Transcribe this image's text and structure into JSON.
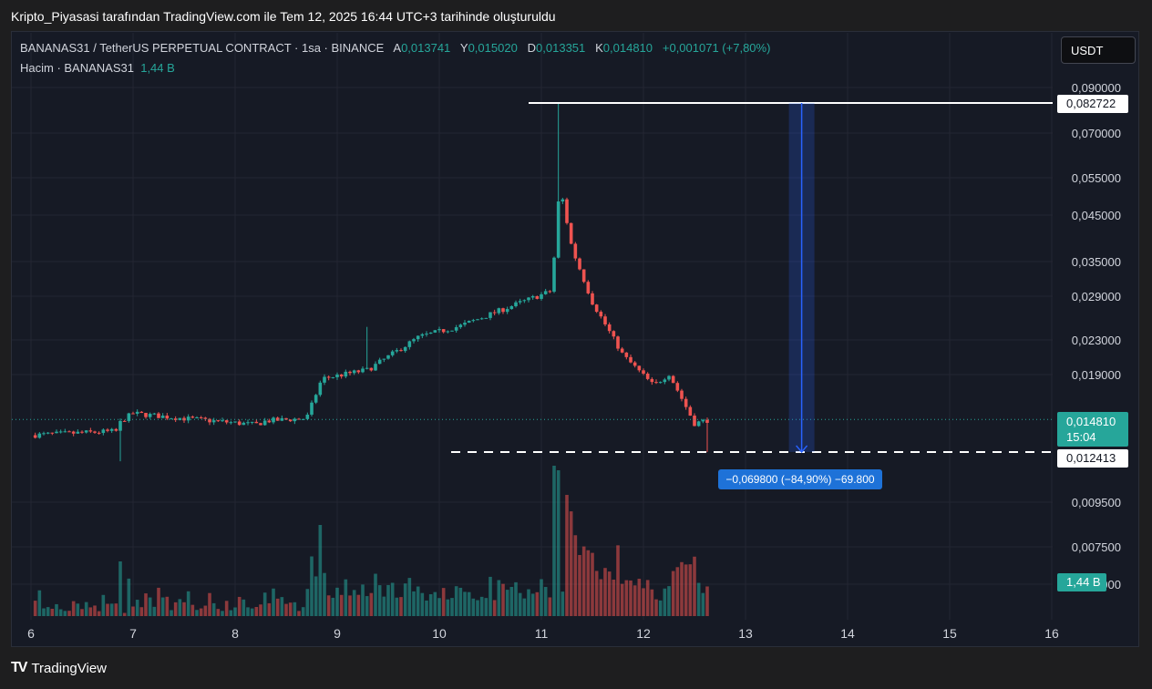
{
  "caption": "Kripto_Piyasasi tarafından TradingView.com ile Tem 12, 2025 16:44 UTC+3 tarihinde oluşturuldu",
  "legend": {
    "symbol": "BANANAS31 / TetherUS PERPETUAL CONTRACT · 1sa · BINANCE",
    "o_label": "A",
    "o_value": "0,013741",
    "h_label": "Y",
    "h_value": "0,015020",
    "l_label": "D",
    "l_value": "0,013351",
    "c_label": "K",
    "c_value": "0,014810",
    "change": "+0,001071 (+7,80%)",
    "volume_label": "Hacim · BANANAS31",
    "volume_value": "1,44 B"
  },
  "currency_button": "USDT",
  "price_tags": {
    "high": "0,082722",
    "current": "0,014810",
    "countdown": "15:04",
    "low": "0,012413",
    "volume": "1,44 B"
  },
  "measure_label": "−0,069800 (−84,90%) −69.800",
  "brand": "TradingView",
  "colors": {
    "up": "#26a69a",
    "down": "#ef5350",
    "measure": "#2962ff"
  },
  "chart_data": {
    "type": "candlestick",
    "interval": "1h",
    "y_scale": "log",
    "x_ticks": [
      "6",
      "7",
      "8",
      "9",
      "10",
      "11",
      "12",
      "13",
      "14",
      "15",
      "16"
    ],
    "y_ticks": [
      "0,090000",
      "0,070000",
      "0,055000",
      "0,045000",
      "0,035000",
      "0,029000",
      "0,023000",
      "0,019000",
      "0,009500",
      "0,007500",
      "0,005000"
    ],
    "ylim": [
      0.0075,
      0.095
    ],
    "approx_close_path": [
      {
        "day": 6.0,
        "close": 0.0136
      },
      {
        "day": 6.85,
        "close": 0.0139
      },
      {
        "day": 6.88,
        "close": 0.0147
      },
      {
        "day": 7.0,
        "close": 0.0153
      },
      {
        "day": 7.5,
        "close": 0.0149
      },
      {
        "day": 8.2,
        "close": 0.0144
      },
      {
        "day": 8.3,
        "close": 0.0147
      },
      {
        "day": 8.7,
        "close": 0.0149
      },
      {
        "day": 8.85,
        "close": 0.0185
      },
      {
        "day": 9.3,
        "close": 0.0194
      },
      {
        "day": 9.8,
        "close": 0.0232
      },
      {
        "day": 10.2,
        "close": 0.0246
      },
      {
        "day": 10.7,
        "close": 0.0274
      },
      {
        "day": 11.1,
        "close": 0.0298
      },
      {
        "day": 11.18,
        "close": 0.053
      },
      {
        "day": 11.3,
        "close": 0.0375
      },
      {
        "day": 11.5,
        "close": 0.028
      },
      {
        "day": 11.8,
        "close": 0.021
      },
      {
        "day": 12.1,
        "close": 0.0178
      },
      {
        "day": 12.25,
        "close": 0.019
      },
      {
        "day": 12.5,
        "close": 0.0145
      },
      {
        "day": 12.65,
        "close": 0.01481
      }
    ],
    "high": 0.082722,
    "low": 0.012413,
    "last_close": 0.01481
  }
}
